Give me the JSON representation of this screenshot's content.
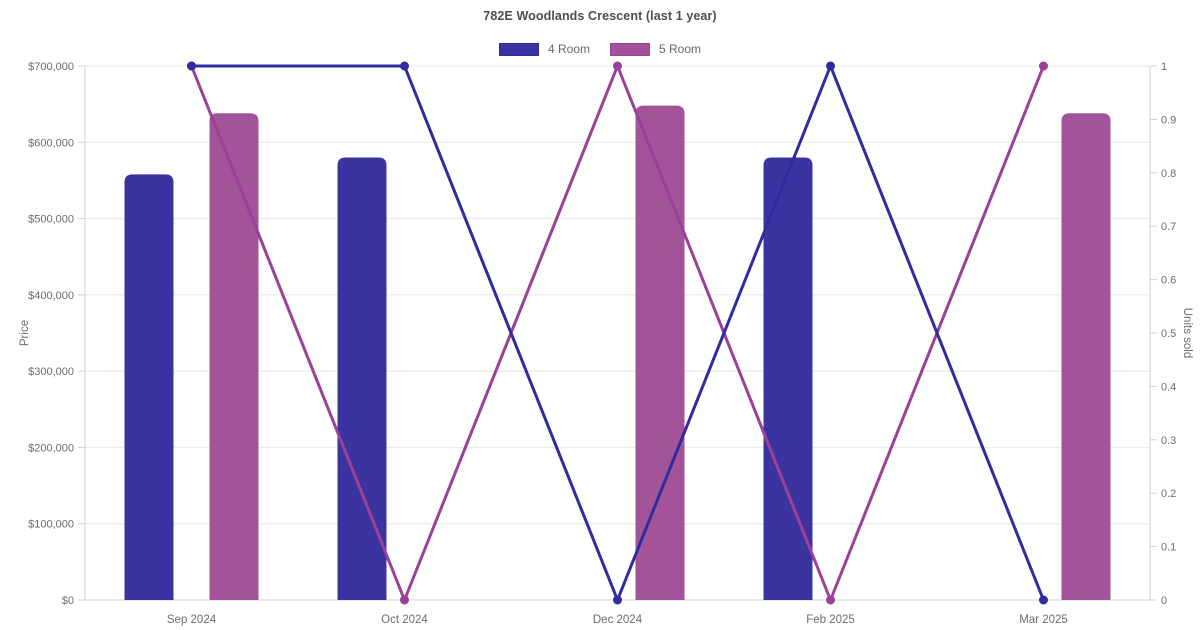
{
  "chart_data": {
    "type": "bar",
    "subtype": "grouped-bars-with-lines-dual-axis",
    "title": "782E Woodlands Crescent (last 1 year)",
    "categories": [
      "Sep 2024",
      "Oct 2024",
      "Dec 2024",
      "Feb 2025",
      "Mar 2025"
    ],
    "bar_series": [
      {
        "name": "4 Room",
        "axis": "left",
        "color": "#3b34a0",
        "values": [
          558000,
          580000,
          null,
          580000,
          null
        ]
      },
      {
        "name": "5 Room",
        "axis": "left",
        "color": "#a25399",
        "values": [
          638000,
          null,
          648000,
          null,
          638000
        ]
      }
    ],
    "line_series": [
      {
        "name": "4 Room",
        "axis": "right",
        "color": "#312ba0",
        "values": [
          1,
          1,
          0,
          1,
          0
        ]
      },
      {
        "name": "5 Room",
        "axis": "right",
        "color": "#9b4096",
        "values": [
          1,
          0,
          1,
          0,
          1
        ]
      }
    ],
    "legend": [
      {
        "label": "4 Room",
        "fill": "#3b34a0",
        "border": "#312ba0"
      },
      {
        "label": "5 Room",
        "fill": "#a25399",
        "border": "#9b4096"
      }
    ],
    "y_left": {
      "label": "Price",
      "min": 0,
      "max": 700000,
      "step": 100000,
      "tick_labels": [
        "$0",
        "$100,000",
        "$200,000",
        "$300,000",
        "$400,000",
        "$500,000",
        "$600,000",
        "$700,000"
      ]
    },
    "y_right": {
      "label": "Units sold",
      "min": 0,
      "max": 1,
      "step": 0.1,
      "tick_labels": [
        "0",
        "0.1",
        "0.2",
        "0.3",
        "0.4",
        "0.5",
        "0.6",
        "0.7",
        "0.8",
        "0.9",
        "1"
      ]
    },
    "grid": "horizontal-only",
    "legend_position": "top",
    "background": "#ffffff",
    "colors": {
      "grid_line": "#e8e8e8",
      "axis_line": "#d2d2d2",
      "tick_text": "#6b6b6b",
      "title_text": "#4d4d4d"
    }
  }
}
